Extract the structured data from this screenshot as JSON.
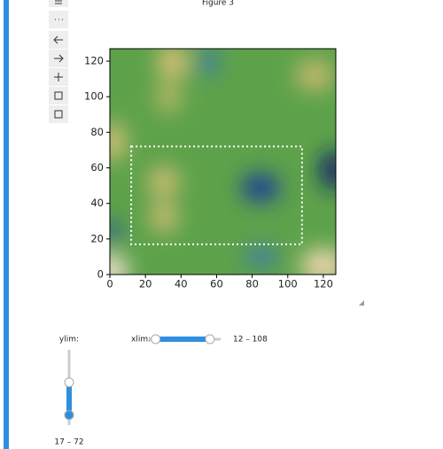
{
  "figure": {
    "title": "Figure 3"
  },
  "chart_data": {
    "type": "image",
    "xlim": [
      0,
      127
    ],
    "ylim": [
      0,
      127
    ],
    "xticks": [
      0,
      20,
      40,
      60,
      80,
      100,
      120
    ],
    "yticks": [
      0,
      20,
      40,
      60,
      80,
      100,
      120
    ],
    "selection": {
      "x": [
        12,
        108
      ],
      "y": [
        17,
        72
      ]
    }
  },
  "sliders": [
    {
      "label": "ylim:",
      "orientation": "vertical",
      "range": [
        0,
        127
      ],
      "value": [
        17,
        72
      ],
      "value_label": "17 – 72"
    },
    {
      "label": "xlim:",
      "orientation": "horizontal",
      "range": [
        0,
        127
      ],
      "value": [
        12,
        108
      ],
      "value_label": "12 – 108"
    }
  ]
}
